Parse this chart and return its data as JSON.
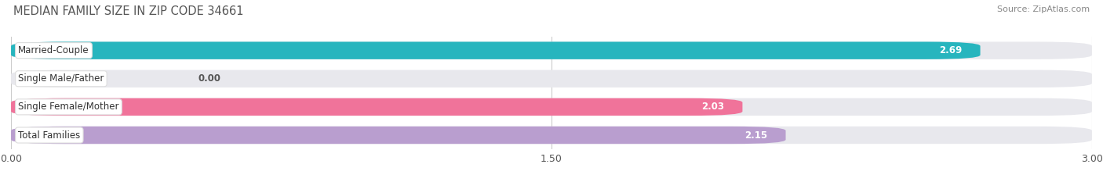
{
  "title": "MEDIAN FAMILY SIZE IN ZIP CODE 34661",
  "source": "Source: ZipAtlas.com",
  "categories": [
    "Married-Couple",
    "Single Male/Father",
    "Single Female/Mother",
    "Total Families"
  ],
  "values": [
    2.69,
    0.0,
    2.03,
    2.15
  ],
  "bar_colors": [
    "#27b5be",
    "#a8b8e8",
    "#f0739a",
    "#b99ecf"
  ],
  "bar_bg_color": "#e8e8ed",
  "xlim": [
    0.0,
    3.0
  ],
  "xticks": [
    0.0,
    1.5,
    3.0
  ],
  "xtick_labels": [
    "0.00",
    "1.50",
    "3.00"
  ],
  "figsize": [
    14.06,
    2.33
  ],
  "dpi": 100
}
